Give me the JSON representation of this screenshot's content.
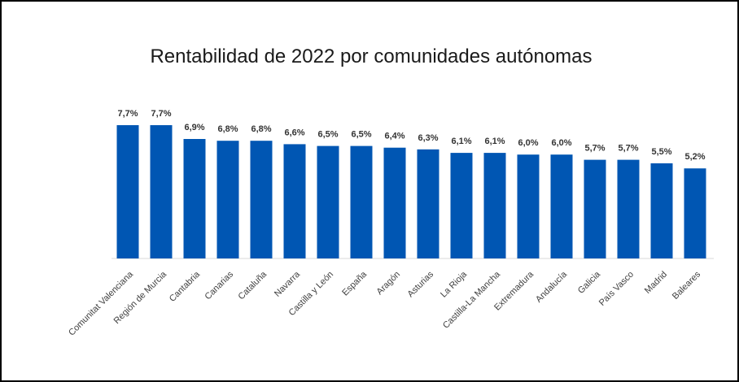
{
  "chart_data": {
    "type": "bar",
    "title": "Rentabilidad de 2022 por comunidades autónomas",
    "xlabel": "",
    "ylabel": "",
    "grid": false,
    "legend": "none",
    "bar_color": "#0056B3",
    "ylim": [
      0,
      7.7
    ],
    "categories": [
      "Comunitat Valenciana",
      "Región de Murcia",
      "Cantabria",
      "Canarias",
      "Cataluña",
      "Navarra",
      "Castilla y León",
      "España",
      "Aragón",
      "Asturias",
      "La Rioja",
      "Castilla-La Mancha",
      "Extremadura",
      "Andalucía",
      "Galicia",
      "País Vasco",
      "Madrid",
      "Baleares"
    ],
    "values": [
      7.7,
      7.7,
      6.9,
      6.8,
      6.8,
      6.6,
      6.5,
      6.5,
      6.4,
      6.3,
      6.1,
      6.1,
      6.0,
      6.0,
      5.7,
      5.7,
      5.5,
      5.2
    ],
    "value_labels": [
      "7,7%",
      "7,7%",
      "6,9%",
      "6,8%",
      "6,8%",
      "6,6%",
      "6,5%",
      "6,5%",
      "6,4%",
      "6,3%",
      "6,1%",
      "6,1%",
      "6,0%",
      "6,0%",
      "5,7%",
      "5,7%",
      "5,5%",
      "5,2%"
    ]
  }
}
